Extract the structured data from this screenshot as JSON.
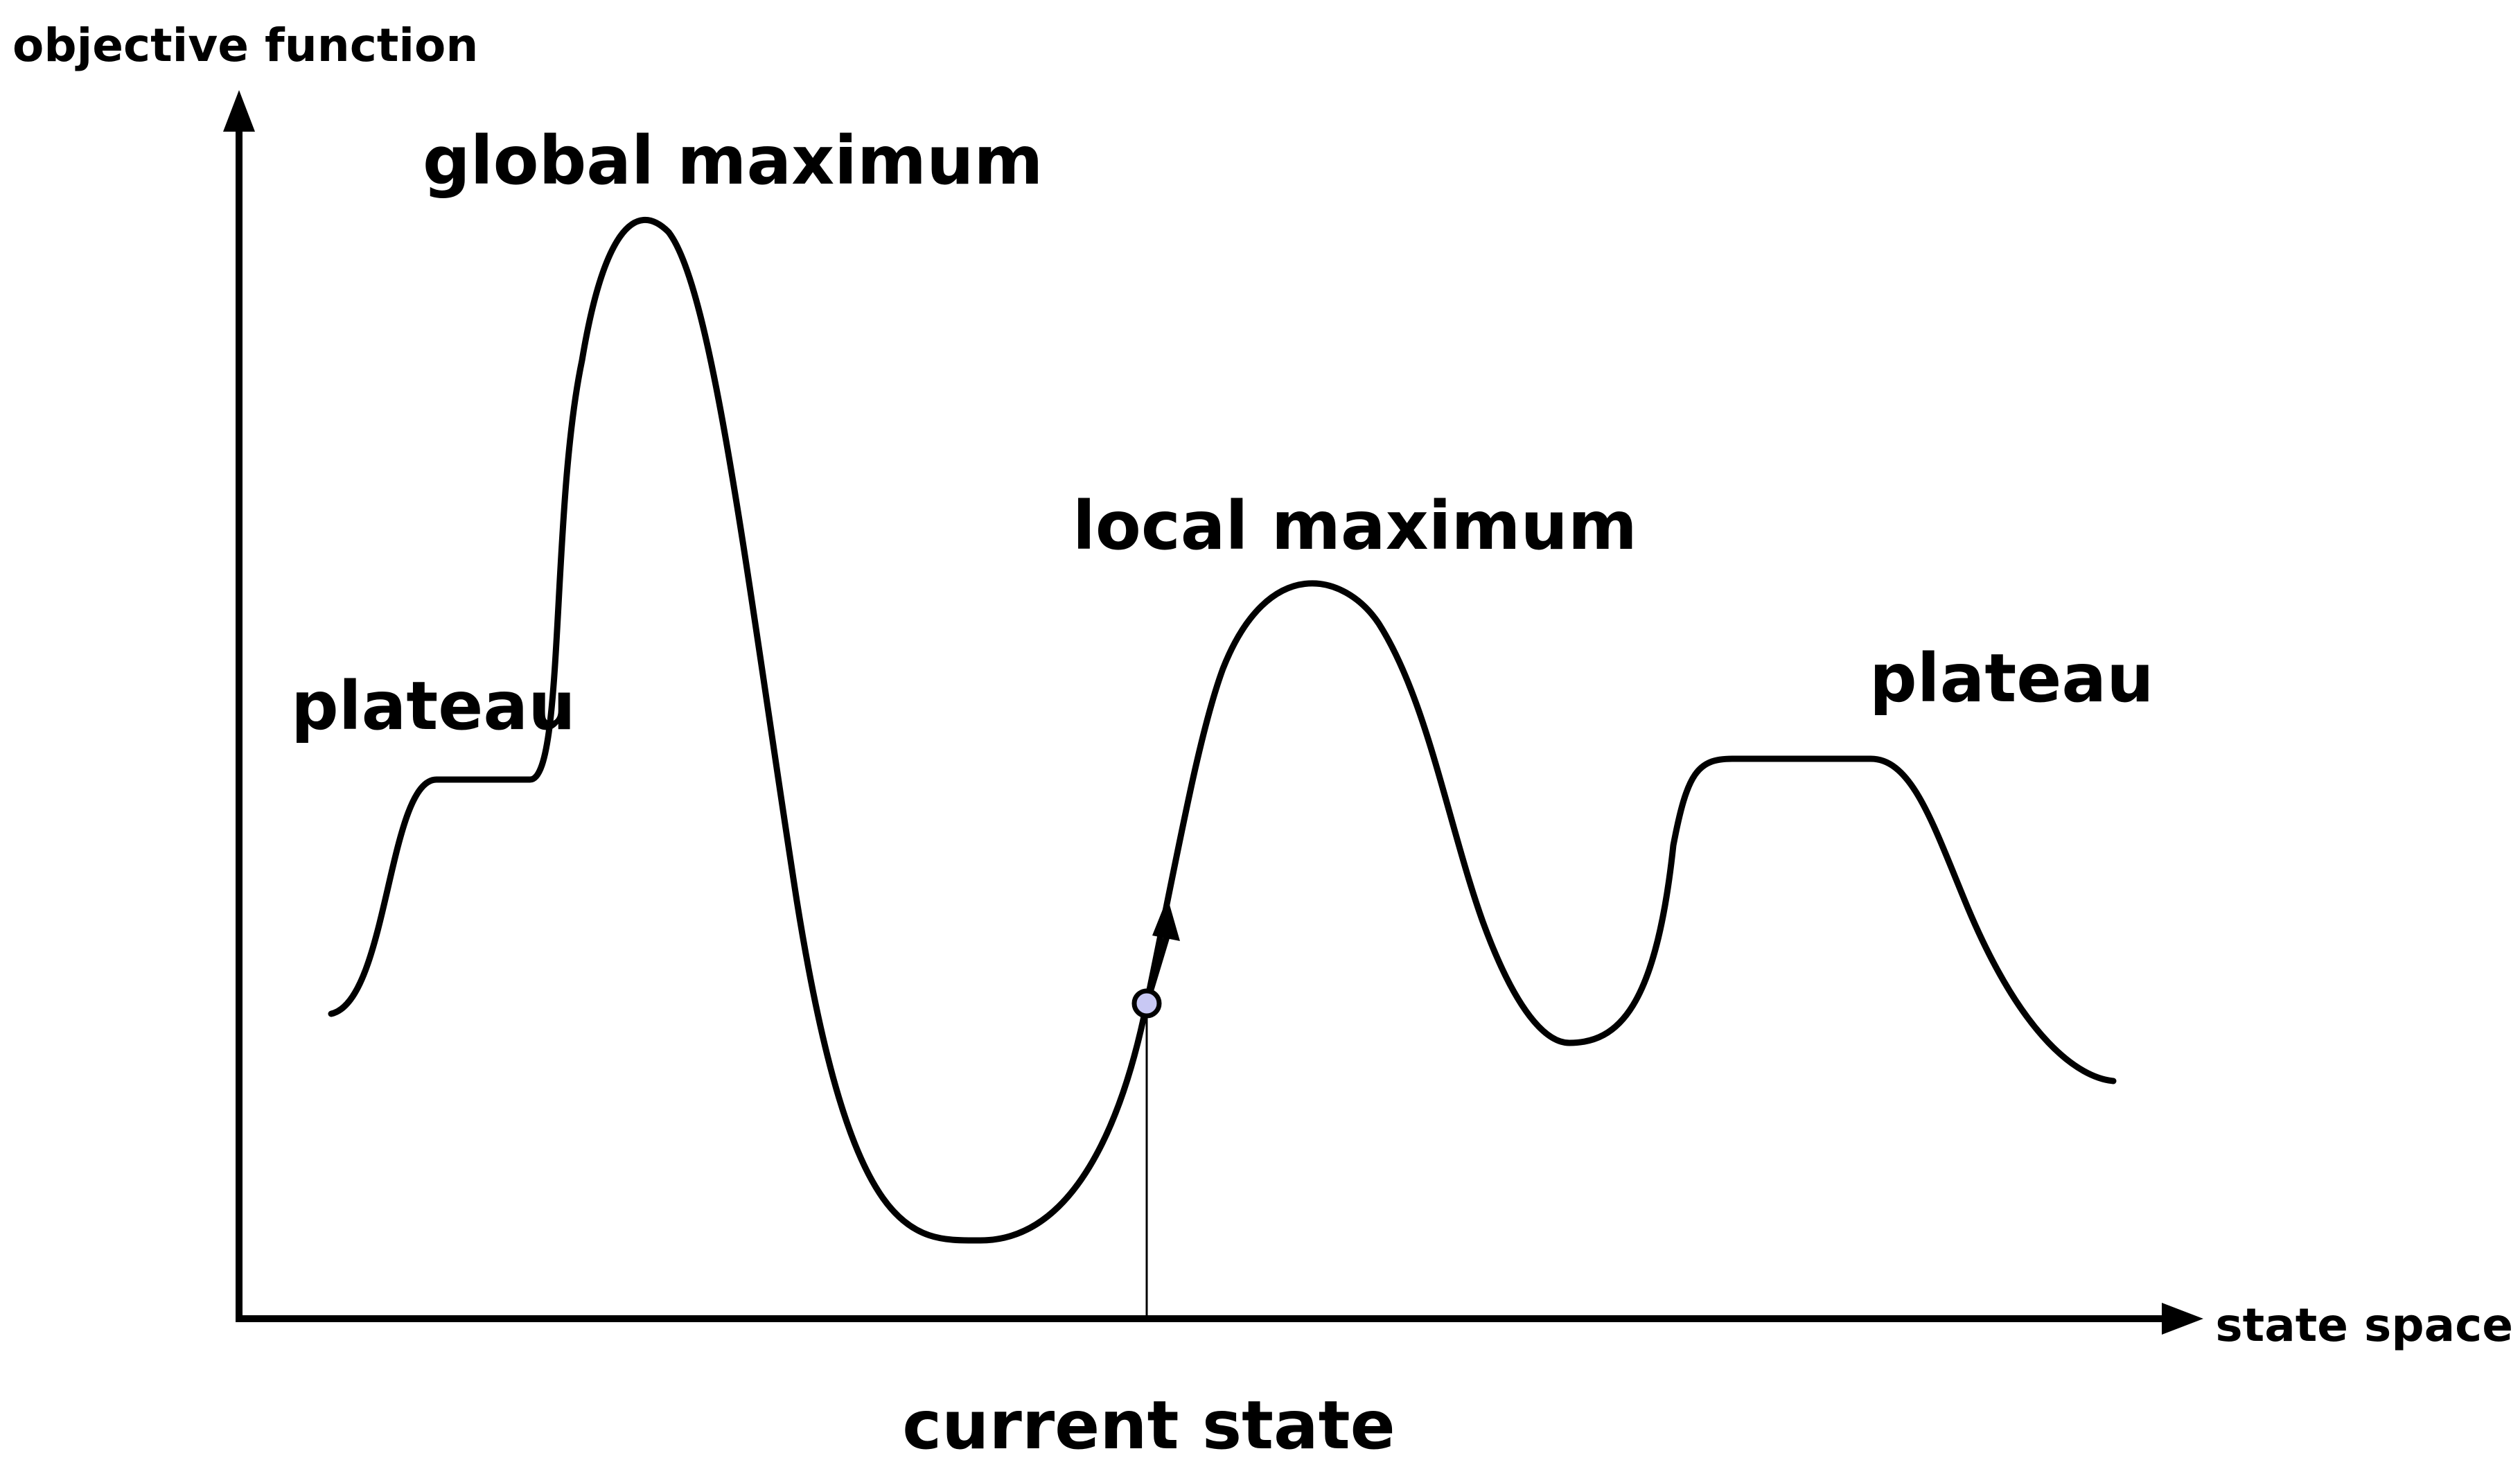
{
  "axes": {
    "y_label": "objective function",
    "x_label": "state space"
  },
  "labels": {
    "global_maximum": "global maximum",
    "local_maximum": "local maximum",
    "plateau_left": "plateau",
    "plateau_right": "plateau",
    "current_state": "current state"
  },
  "colors": {
    "stroke": "#000000",
    "current_state_marker": "#c8c8f4",
    "background": "#ffffff"
  }
}
